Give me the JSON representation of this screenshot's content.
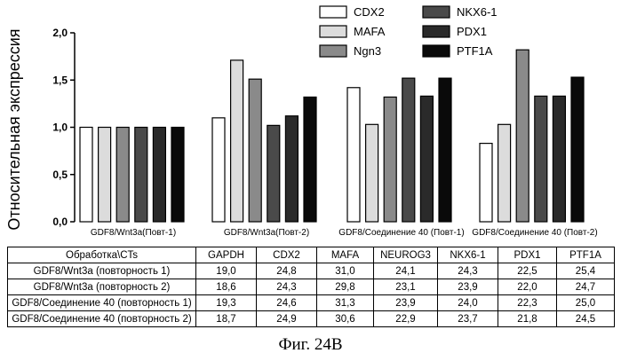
{
  "chart_data": {
    "type": "bar",
    "ylabel": "Относительная экспрессия",
    "ylim": [
      0,
      2.0
    ],
    "yticks": [
      "0,0",
      "0,5",
      "1,0",
      "1,5",
      "2,0"
    ],
    "yticks_values": [
      0,
      0.5,
      1.0,
      1.5,
      2.0
    ],
    "categories": [
      "GDF8/Wnt3a(Повт-1)",
      "GDF8/Wnt3a(Повт-2)",
      "GDF8/Соединение 40 (Повт-1)",
      "GDF8/Соединение 40 (Повт-2)"
    ],
    "series": [
      {
        "name": "CDX2",
        "values": [
          1.0,
          1.1,
          1.42,
          0.83
        ],
        "color": "#ffffff"
      },
      {
        "name": "MAFA",
        "values": [
          1.0,
          1.71,
          1.03,
          1.03
        ],
        "color": "#dcdcdc"
      },
      {
        "name": "Ngn3",
        "values": [
          1.0,
          1.51,
          1.32,
          1.82
        ],
        "color": "#8a8a8a"
      },
      {
        "name": "NKX6-1",
        "values": [
          1.0,
          1.02,
          1.52,
          1.33
        ],
        "color": "#4a4a4a"
      },
      {
        "name": "PDX1",
        "values": [
          1.0,
          1.12,
          1.33,
          1.33
        ],
        "color": "#2a2a2a"
      },
      {
        "name": "PTF1A",
        "values": [
          1.0,
          1.32,
          1.52,
          1.53
        ],
        "color": "#0a0a0a"
      }
    ],
    "legend_position": "top-right"
  },
  "table": {
    "headers": [
      "Обработка\\CTs",
      "GAPDH",
      "CDX2",
      "MAFA",
      "NEUROG3",
      "NKX6-1",
      "PDX1",
      "PTF1A"
    ],
    "rows": [
      [
        "GDF8/Wnt3a (повторность 1)",
        "19,0",
        "24,8",
        "31,0",
        "24,1",
        "24,3",
        "22,5",
        "25,4"
      ],
      [
        "GDF8/Wnt3a (повторность 2)",
        "18,6",
        "24,3",
        "29,8",
        "23,1",
        "23,9",
        "22,0",
        "24,7"
      ],
      [
        "GDF8/Соединение 40 (повторность 1)",
        "19,3",
        "24,6",
        "31,3",
        "23,9",
        "24,0",
        "22,3",
        "25,0"
      ],
      [
        "GDF8/Соединение 40 (повторность 2)",
        "18,7",
        "24,9",
        "30,6",
        "22,9",
        "23,7",
        "21,8",
        "24,5"
      ]
    ]
  },
  "caption": "Фиг. 24B"
}
